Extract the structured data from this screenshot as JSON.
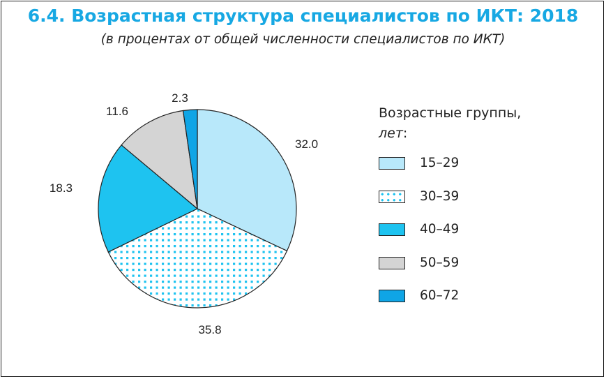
{
  "title": "6.4. Возрастная структура специалистов по ИКТ: 2018",
  "subtitle": "(в процентах от общей численности специалистов по ИКТ)",
  "legend": {
    "title_line1": "Возрастные группы,",
    "title_unit": "лет",
    "title_colon": ":"
  },
  "chart_data": {
    "type": "pie",
    "title": "6.4. Возрастная структура специалистов по ИКТ: 2018",
    "subtitle": "(в процентах от общей численности специалистов по ИКТ)",
    "legend_title": "Возрастные группы, лет:",
    "legend_position": "right",
    "categories": [
      "15–29",
      "30–39",
      "40–49",
      "50–59",
      "60–72"
    ],
    "values": [
      32.0,
      35.8,
      18.3,
      11.6,
      2.3
    ],
    "value_labels": [
      "32.0",
      "35.8",
      "18.3",
      "11.6",
      "2.3"
    ],
    "colors": [
      "#b8e8fa",
      "#ffffff",
      "#1ec3f0",
      "#d4d4d4",
      "#0fa5e6"
    ],
    "patterns": [
      "solid",
      "dotted",
      "solid",
      "solid",
      "solid"
    ],
    "dot_color": "#1ec3f0"
  }
}
